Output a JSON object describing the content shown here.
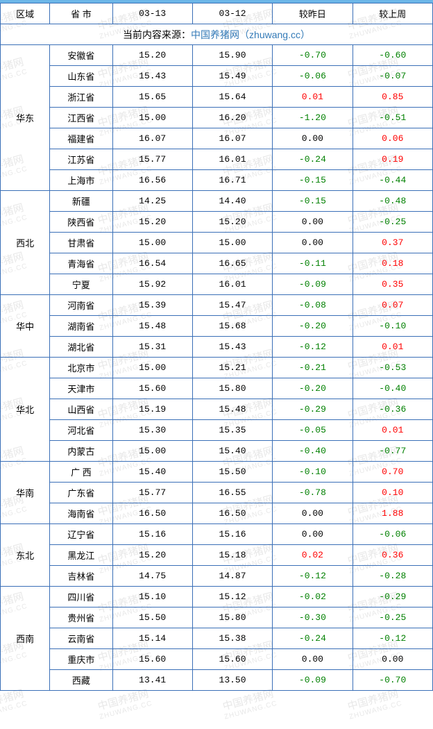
{
  "table": {
    "headers": [
      "区域",
      "省 市",
      "03-13",
      "03-12",
      "较昨日",
      "较上周"
    ],
    "source_prefix": "当前内容来源：",
    "source_name": "中国养猪网",
    "source_suffix": "（zhuwang.cc）",
    "colors": {
      "border": "#3a6fb7",
      "pos": "#ff0000",
      "neg": "#008000",
      "link": "#337ab7",
      "watermark": "#e8e8e8"
    },
    "watermark": {
      "cn": "中国养猪网",
      "en": "ZHUWANG.CC"
    },
    "regions": [
      {
        "name": "华东",
        "rows": [
          {
            "prov": "安徽省",
            "d1": "15.20",
            "d2": "15.90",
            "yd": "-0.70",
            "wk": "-0.60"
          },
          {
            "prov": "山东省",
            "d1": "15.43",
            "d2": "15.49",
            "yd": "-0.06",
            "wk": "-0.07"
          },
          {
            "prov": "浙江省",
            "d1": "15.65",
            "d2": "15.64",
            "yd": "0.01",
            "wk": "0.85"
          },
          {
            "prov": "江西省",
            "d1": "15.00",
            "d2": "16.20",
            "yd": "-1.20",
            "wk": "-0.51"
          },
          {
            "prov": "福建省",
            "d1": "16.07",
            "d2": "16.07",
            "yd": "0.00",
            "wk": "0.06"
          },
          {
            "prov": "江苏省",
            "d1": "15.77",
            "d2": "16.01",
            "yd": "-0.24",
            "wk": "0.19"
          },
          {
            "prov": "上海市",
            "d1": "16.56",
            "d2": "16.71",
            "yd": "-0.15",
            "wk": "-0.44"
          }
        ]
      },
      {
        "name": "西北",
        "rows": [
          {
            "prov": "新疆",
            "d1": "14.25",
            "d2": "14.40",
            "yd": "-0.15",
            "wk": "-0.48"
          },
          {
            "prov": "陕西省",
            "d1": "15.20",
            "d2": "15.20",
            "yd": "0.00",
            "wk": "-0.25"
          },
          {
            "prov": "甘肃省",
            "d1": "15.00",
            "d2": "15.00",
            "yd": "0.00",
            "wk": "0.37"
          },
          {
            "prov": "青海省",
            "d1": "16.54",
            "d2": "16.65",
            "yd": "-0.11",
            "wk": "0.18"
          },
          {
            "prov": "宁夏",
            "d1": "15.92",
            "d2": "16.01",
            "yd": "-0.09",
            "wk": "0.35"
          }
        ]
      },
      {
        "name": "华中",
        "rows": [
          {
            "prov": "河南省",
            "d1": "15.39",
            "d2": "15.47",
            "yd": "-0.08",
            "wk": "0.07"
          },
          {
            "prov": "湖南省",
            "d1": "15.48",
            "d2": "15.68",
            "yd": "-0.20",
            "wk": "-0.10"
          },
          {
            "prov": "湖北省",
            "d1": "15.31",
            "d2": "15.43",
            "yd": "-0.12",
            "wk": "0.01"
          }
        ]
      },
      {
        "name": "华北",
        "rows": [
          {
            "prov": "北京市",
            "d1": "15.00",
            "d2": "15.21",
            "yd": "-0.21",
            "wk": "-0.53"
          },
          {
            "prov": "天津市",
            "d1": "15.60",
            "d2": "15.80",
            "yd": "-0.20",
            "wk": "-0.40"
          },
          {
            "prov": "山西省",
            "d1": "15.19",
            "d2": "15.48",
            "yd": "-0.29",
            "wk": "-0.36"
          },
          {
            "prov": "河北省",
            "d1": "15.30",
            "d2": "15.35",
            "yd": "-0.05",
            "wk": "0.01"
          },
          {
            "prov": "内蒙古",
            "d1": "15.00",
            "d2": "15.40",
            "yd": "-0.40",
            "wk": "-0.77"
          }
        ]
      },
      {
        "name": "华南",
        "rows": [
          {
            "prov": "广 西",
            "d1": "15.40",
            "d2": "15.50",
            "yd": "-0.10",
            "wk": "0.70"
          },
          {
            "prov": "广东省",
            "d1": "15.77",
            "d2": "16.55",
            "yd": "-0.78",
            "wk": "0.10"
          },
          {
            "prov": "海南省",
            "d1": "16.50",
            "d2": "16.50",
            "yd": "0.00",
            "wk": "1.88"
          }
        ]
      },
      {
        "name": "东北",
        "rows": [
          {
            "prov": "辽宁省",
            "d1": "15.16",
            "d2": "15.16",
            "yd": "0.00",
            "wk": "-0.06"
          },
          {
            "prov": "黑龙江",
            "d1": "15.20",
            "d2": "15.18",
            "yd": "0.02",
            "wk": "0.36"
          },
          {
            "prov": "吉林省",
            "d1": "14.75",
            "d2": "14.87",
            "yd": "-0.12",
            "wk": "-0.28"
          }
        ]
      },
      {
        "name": "西南",
        "rows": [
          {
            "prov": "四川省",
            "d1": "15.10",
            "d2": "15.12",
            "yd": "-0.02",
            "wk": "-0.29"
          },
          {
            "prov": "贵州省",
            "d1": "15.50",
            "d2": "15.80",
            "yd": "-0.30",
            "wk": "-0.25"
          },
          {
            "prov": "云南省",
            "d1": "15.14",
            "d2": "15.38",
            "yd": "-0.24",
            "wk": "-0.12"
          },
          {
            "prov": "重庆市",
            "d1": "15.60",
            "d2": "15.60",
            "yd": "0.00",
            "wk": "0.00"
          },
          {
            "prov": "西藏",
            "d1": "13.41",
            "d2": "13.50",
            "yd": "-0.09",
            "wk": "-0.70"
          }
        ]
      }
    ]
  }
}
